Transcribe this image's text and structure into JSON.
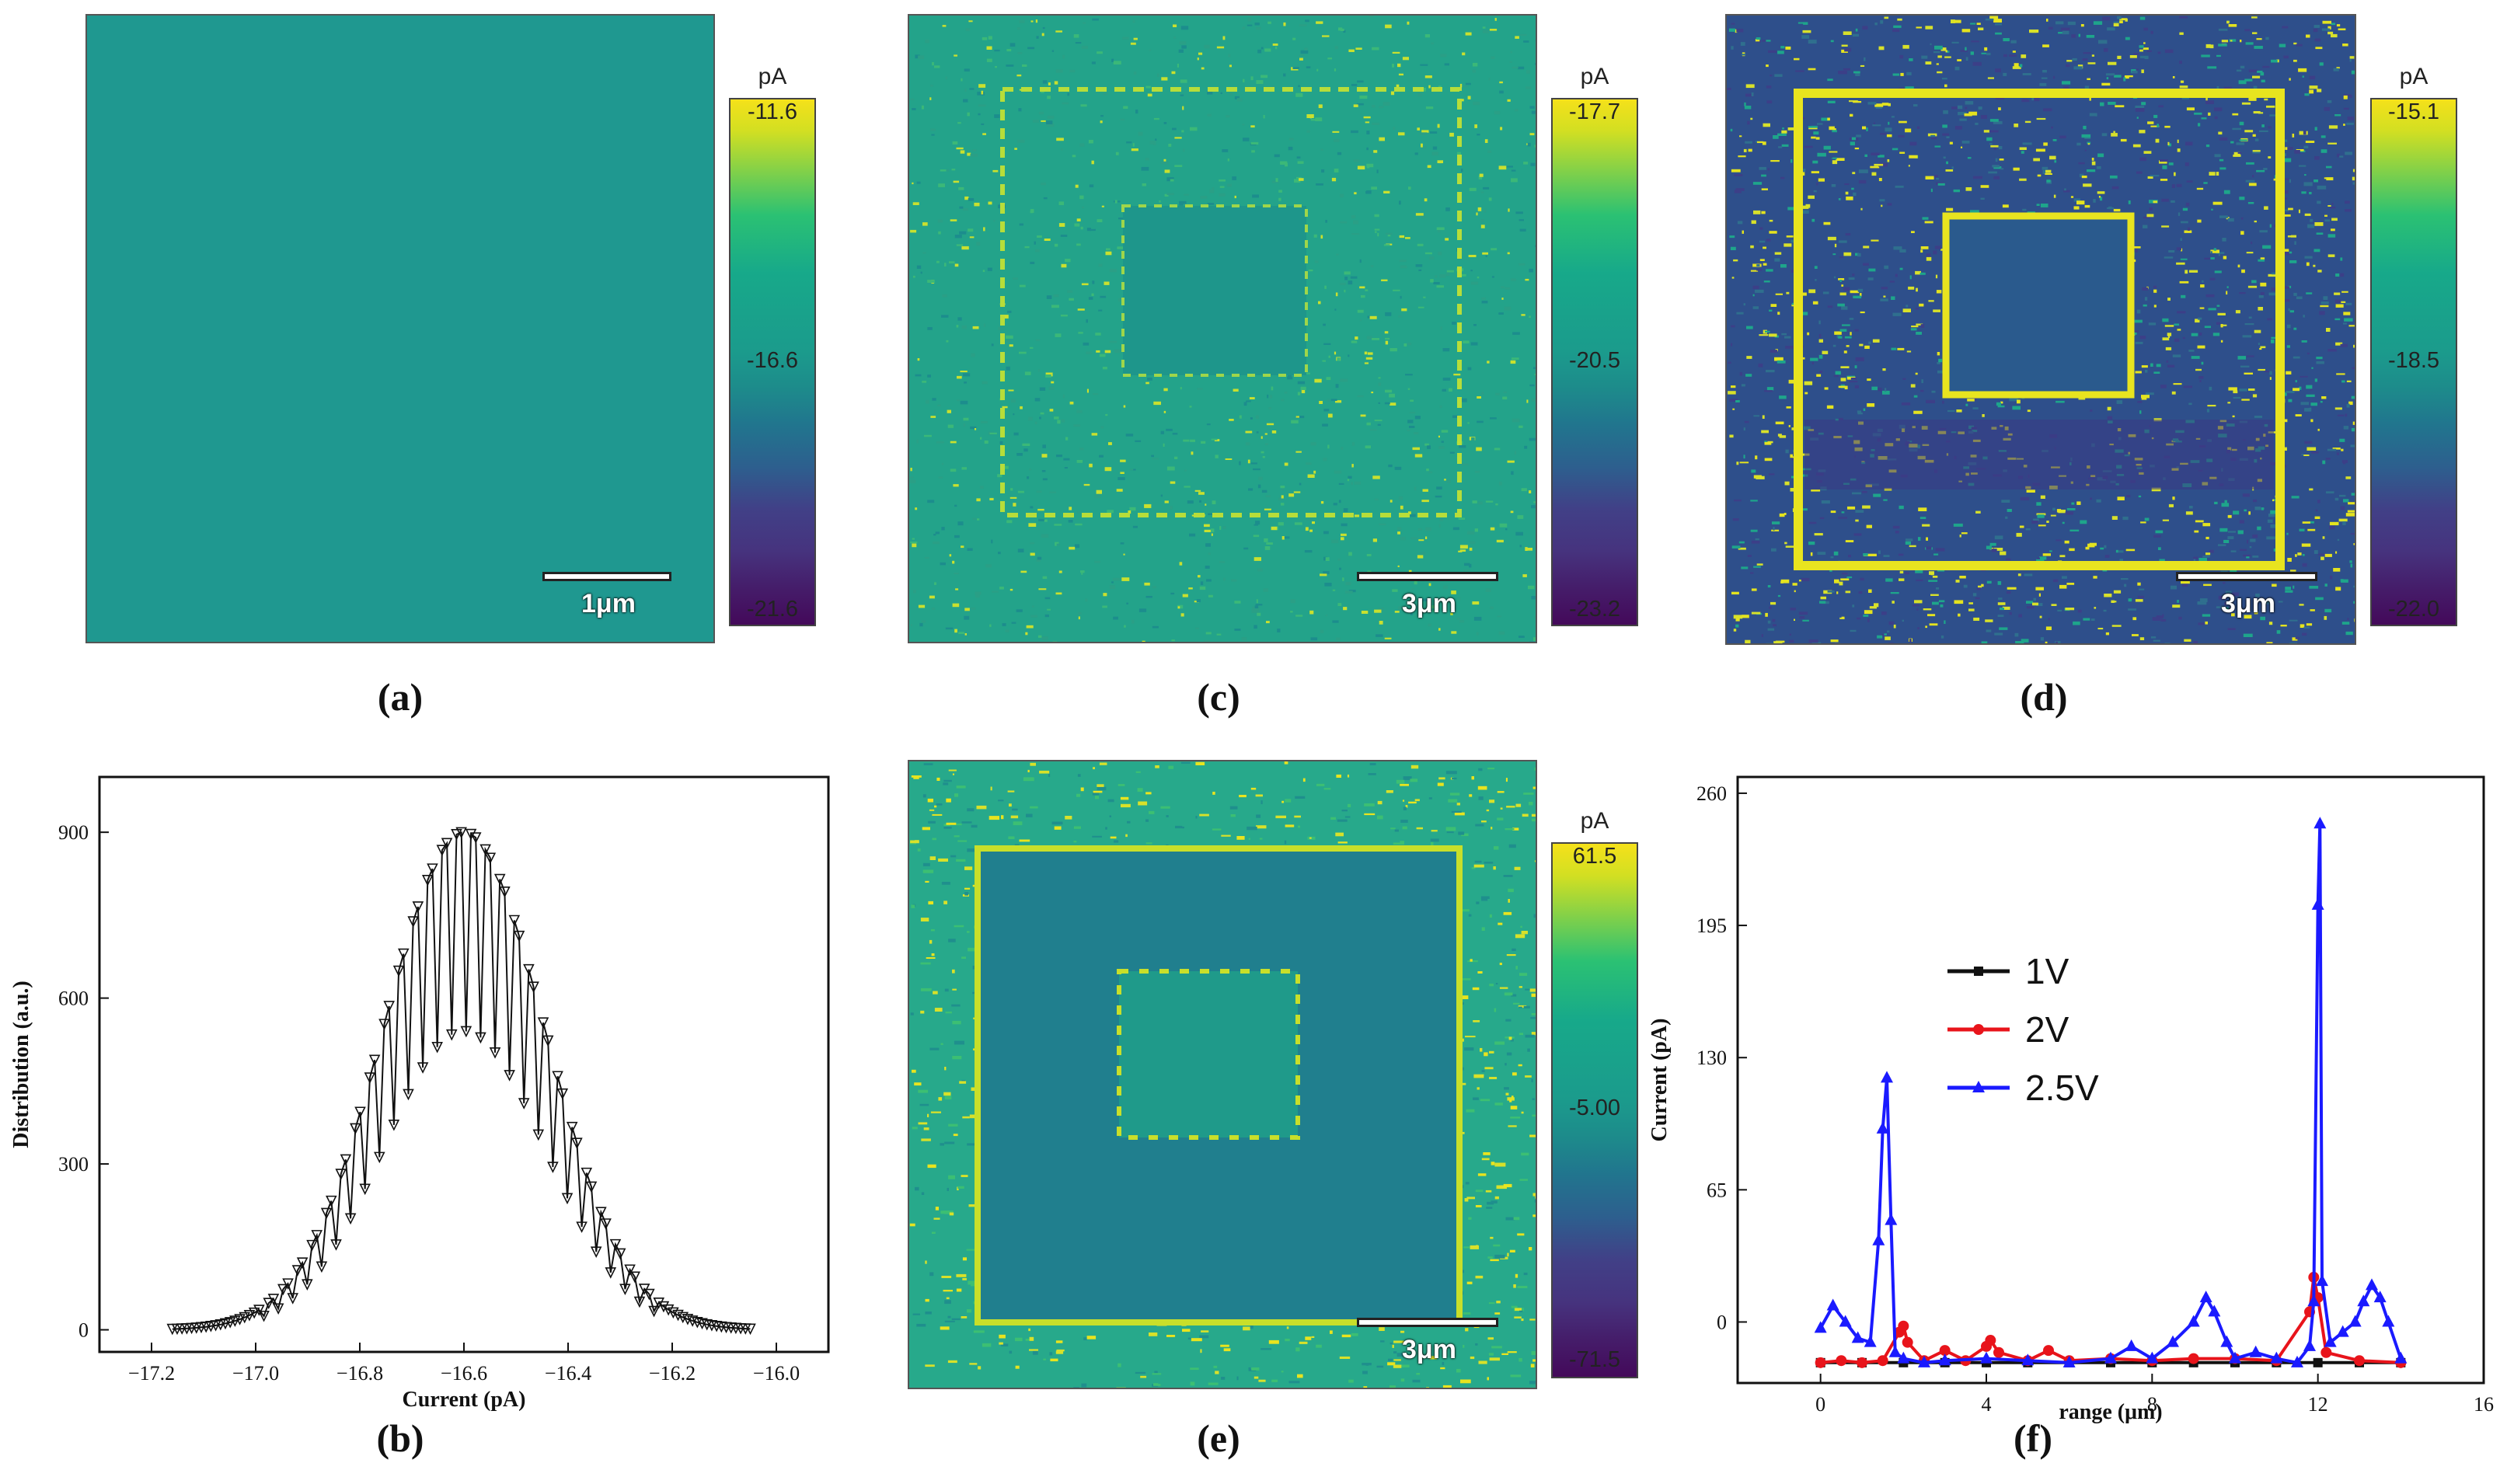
{
  "panels": {
    "a": {
      "label": "(a)",
      "colorbar": {
        "unit": "pA",
        "max": "-11.6",
        "mid": "-16.6",
        "min": "-21.6"
      },
      "scalebar": "1μm"
    },
    "c": {
      "label": "(c)",
      "colorbar": {
        "unit": "pA",
        "max": "-17.7",
        "mid": "-20.5",
        "min": "-23.2"
      },
      "scalebar": "3μm"
    },
    "d": {
      "label": "(d)",
      "colorbar": {
        "unit": "pA",
        "max": "-15.1",
        "mid": "-18.5",
        "min": "-22.0"
      },
      "scalebar": "3μm"
    },
    "e": {
      "label": "(e)",
      "colorbar": {
        "unit": "pA",
        "max": "61.5",
        "mid": "-5.00",
        "min": "-71.5"
      },
      "scalebar": "3μm"
    },
    "b": {
      "label": "(b)"
    },
    "f": {
      "label": "(f)"
    }
  },
  "chart_data": [
    {
      "id": "b",
      "type": "line",
      "xlabel": "Current (pA)",
      "ylabel": "Distribution (a.u.)",
      "xlim": [
        -17.3,
        -15.9
      ],
      "ylim": [
        -40,
        1000
      ],
      "xticks": [
        -17.2,
        -17.0,
        -16.8,
        -16.6,
        -16.4,
        -16.2,
        -16.0
      ],
      "xtick_labels": [
        "−17.2",
        "−17.0",
        "−16.8",
        "−16.6",
        "−16.4",
        "−16.2",
        "−16.0"
      ],
      "yticks": [
        0,
        300,
        600,
        900
      ],
      "ytick_labels": [
        "0",
        "300",
        "600",
        "900"
      ],
      "series": [
        {
          "name": "distribution",
          "marker": "triangle-down",
          "peak_x": -16.6,
          "peak_y": 900,
          "sigma": 0.155,
          "x_start": -17.16,
          "x_end": -16.05
        }
      ]
    },
    {
      "id": "f",
      "type": "line",
      "xlabel": "range (μm)",
      "ylabel": "Current (pA)",
      "xlim": [
        -2,
        16
      ],
      "ylim": [
        -30,
        268
      ],
      "xticks": [
        0,
        4,
        8,
        12,
        16
      ],
      "xtick_labels": [
        "0",
        "4",
        "8",
        "12",
        "16"
      ],
      "yticks": [
        0,
        65,
        130,
        195,
        260
      ],
      "ytick_labels": [
        "0",
        "65",
        "130",
        "195",
        "260"
      ],
      "series": [
        {
          "name": "1V",
          "color": "#111111",
          "marker": "square",
          "x": [
            0,
            1,
            2,
            3,
            4,
            5,
            6,
            7,
            8,
            9,
            10,
            11,
            12,
            13,
            14
          ],
          "y": [
            -20,
            -20,
            -20,
            -20,
            -20,
            -20,
            -20,
            -20,
            -20,
            -20,
            -20,
            -20,
            -20,
            -20,
            -20
          ]
        },
        {
          "name": "2V",
          "color": "#e8141b",
          "marker": "circle",
          "x": [
            0,
            0.5,
            1,
            1.5,
            1.9,
            2.0,
            2.1,
            2.5,
            3,
            3.5,
            4,
            4.1,
            4.3,
            5,
            5.5,
            6,
            7,
            8,
            9,
            10,
            11,
            11.8,
            11.9,
            12.0,
            12.2,
            13,
            14
          ],
          "y": [
            -20,
            -19,
            -20,
            -19,
            -5,
            -2,
            -10,
            -19,
            -14,
            -19,
            -12,
            -9,
            -15,
            -19,
            -14,
            -19,
            -18,
            -19,
            -18,
            -18,
            -19,
            5,
            22,
            12,
            -15,
            -19,
            -20
          ]
        },
        {
          "name": "2.5V",
          "color": "#1a1aff",
          "marker": "triangle-up",
          "x": [
            0,
            0.3,
            0.6,
            0.9,
            1.2,
            1.4,
            1.5,
            1.6,
            1.7,
            1.8,
            2.0,
            2.5,
            3,
            4,
            5,
            6,
            7,
            7.5,
            8,
            8.5,
            9,
            9.3,
            9.5,
            9.8,
            10,
            10.5,
            11,
            11.5,
            11.8,
            11.9,
            12.0,
            12.05,
            12.1,
            12.3,
            12.6,
            12.9,
            13.1,
            13.3,
            13.5,
            13.7,
            14
          ],
          "y": [
            -3,
            8,
            0,
            -8,
            -10,
            40,
            95,
            120,
            50,
            -15,
            -18,
            -20,
            -19,
            -18,
            -19,
            -20,
            -18,
            -12,
            -18,
            -10,
            0,
            12,
            5,
            -10,
            -18,
            -15,
            -18,
            -20,
            -12,
            10,
            205,
            245,
            20,
            -10,
            -5,
            0,
            10,
            18,
            12,
            0,
            -18
          ]
        }
      ],
      "legend": {
        "position": "center",
        "entries": [
          "1V",
          "2V",
          "2.5V"
        ]
      }
    }
  ]
}
